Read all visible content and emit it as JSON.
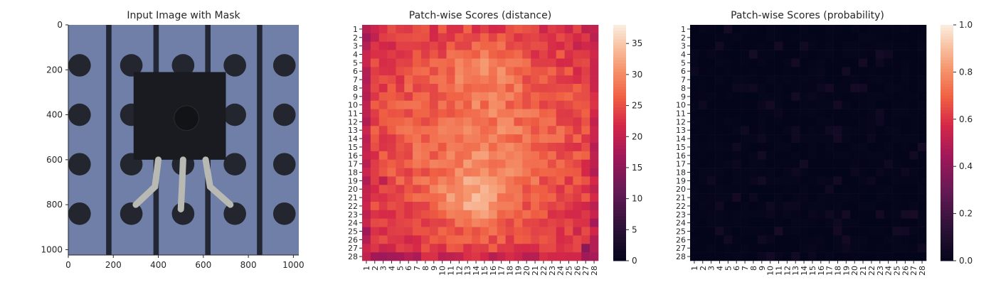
{
  "chart_data": [
    {
      "type": "image",
      "title": "Input Image with Mask",
      "xticks": [
        0,
        200,
        400,
        600,
        800,
        1000
      ],
      "yticks": [
        0,
        200,
        400,
        600,
        800,
        1000
      ],
      "xlim": [
        0,
        1024
      ],
      "ylim": [
        1024,
        0
      ],
      "scene": {
        "background": "#6f7fa8",
        "stripe_color": "#232733",
        "hole_color": "#23262e",
        "component_color": "#1a1b20",
        "lead_color": "#b9b9b4",
        "stripes_x": [
          180,
          390,
          620,
          850
        ],
        "holes_x": [
          50,
          280,
          510,
          740,
          960
        ],
        "holes_y": [
          180,
          400,
          620,
          840
        ]
      }
    },
    {
      "type": "heatmap",
      "title": "Patch-wise Scores (distance)",
      "rows": 28,
      "cols": 28,
      "row_labels": [
        "1",
        "2",
        "3",
        "4",
        "5",
        "6",
        "7",
        "8",
        "9",
        "10",
        "11",
        "12",
        "13",
        "14",
        "15",
        "16",
        "17",
        "18",
        "19",
        "20",
        "21",
        "22",
        "23",
        "24",
        "25",
        "26",
        "27",
        "28"
      ],
      "col_labels": [
        "1",
        "2",
        "3",
        "4",
        "5",
        "6",
        "7",
        "8",
        "9",
        "10",
        "11",
        "12",
        "13",
        "14",
        "15",
        "16",
        "17",
        "18",
        "19",
        "20",
        "21",
        "22",
        "23",
        "24",
        "25",
        "26",
        "27",
        "28"
      ],
      "vmin": 0,
      "vmax": 38,
      "colorbar_ticks": [
        0,
        5,
        10,
        15,
        20,
        25,
        30,
        35
      ],
      "colormap": "rocket",
      "dark_cells": [
        {
          "r": 28,
          "c": 3,
          "v": 17
        },
        {
          "r": 27,
          "c": 27,
          "v": 15
        },
        {
          "r": 11,
          "c": 1,
          "v": 20
        },
        {
          "r": 5,
          "c": 28,
          "v": 21
        },
        {
          "r": 24,
          "c": 1,
          "v": 21
        },
        {
          "r": 19,
          "c": 3,
          "v": 20
        }
      ]
    },
    {
      "type": "heatmap",
      "title": "Patch-wise Scores (probability)",
      "rows": 28,
      "cols": 28,
      "row_labels": [
        "1",
        "2",
        "3",
        "4",
        "5",
        "6",
        "7",
        "8",
        "9",
        "10",
        "11",
        "12",
        "13",
        "14",
        "15",
        "16",
        "17",
        "18",
        "19",
        "20",
        "21",
        "22",
        "23",
        "24",
        "25",
        "26",
        "27",
        "28"
      ],
      "col_labels": [
        "1",
        "2",
        "3",
        "4",
        "5",
        "6",
        "7",
        "8",
        "9",
        "10",
        "11",
        "12",
        "13",
        "14",
        "15",
        "16",
        "17",
        "18",
        "19",
        "20",
        "21",
        "22",
        "23",
        "24",
        "25",
        "26",
        "27",
        "28"
      ],
      "vmin": 0,
      "vmax": 1,
      "colorbar_ticks": [
        "0.0",
        "0.2",
        "0.4",
        "0.6",
        "0.8",
        "1.0"
      ],
      "colormap": "rocket",
      "note_values": "all cells near 0.0-0.05"
    }
  ]
}
